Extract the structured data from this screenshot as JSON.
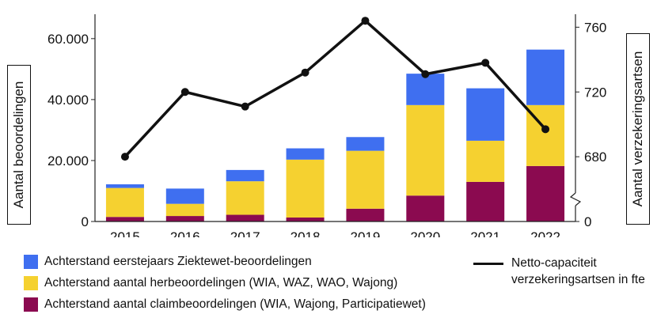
{
  "chart_data": {
    "type": "bar",
    "stacked": true,
    "categories": [
      "2015",
      "2016",
      "2017",
      "2018",
      "2019",
      "2020",
      "2021",
      "2022"
    ],
    "series": [
      {
        "name": "Achterstand aantal claimbeoordelingen (WIA, Wajong, Participatiewet)",
        "color": "#8b0a50",
        "axis": "left",
        "values": [
          1500,
          1800,
          2200,
          1300,
          4200,
          8500,
          13000,
          18200
        ]
      },
      {
        "name": "Achterstand aantal herbeoordelingen (WIA, WAZ, WAO, Wajong)",
        "color": "#f5d130",
        "axis": "left",
        "values": [
          9500,
          4000,
          11000,
          19000,
          19000,
          29700,
          13500,
          20000
        ]
      },
      {
        "name": "Achterstand eerstejaars Ziektewet-beoordelingen",
        "color": "#3f6ff0",
        "axis": "left",
        "values": [
          1200,
          5000,
          3700,
          3700,
          4500,
          10300,
          17200,
          18200
        ]
      },
      {
        "name": "Netto-capaciteit verzekeringsartsen in fte",
        "type": "line",
        "color": "#111111",
        "axis": "right",
        "values": [
          680,
          720,
          711,
          732,
          764,
          731,
          738,
          697
        ]
      }
    ],
    "ylabel": "Aantal beoordelingen",
    "ylabel_right": "Aantal verzekeringsartsen",
    "ylim": [
      0,
      68000
    ],
    "yticks": [
      0,
      20000,
      40000,
      60000
    ],
    "ytick_labels": [
      "0",
      "20.000",
      "40.000",
      "60.000"
    ],
    "ylim_right": [
      0,
      768
    ],
    "right_axis_break": true,
    "yticks_right": [
      0,
      680,
      720,
      760
    ],
    "ytick_labels_right": [
      "0",
      "680",
      "720",
      "760"
    ],
    "grid": false,
    "legend_position": "bottom"
  },
  "legend": {
    "bars": [
      {
        "label": "Achterstand eerstejaars Ziektewet-beoordelingen",
        "color": "#3f6ff0"
      },
      {
        "label": "Achterstand aantal herbeoordelingen (WIA, WAZ, WAO, Wajong)",
        "color": "#f5d130"
      },
      {
        "label": "Achterstand aantal claimbeoordelingen (WIA, Wajong, Participatiewet)",
        "color": "#8b0a50"
      }
    ],
    "line": {
      "label_line1": "Netto-capaciteit",
      "label_line2": "verzekeringsartsen in fte"
    }
  }
}
